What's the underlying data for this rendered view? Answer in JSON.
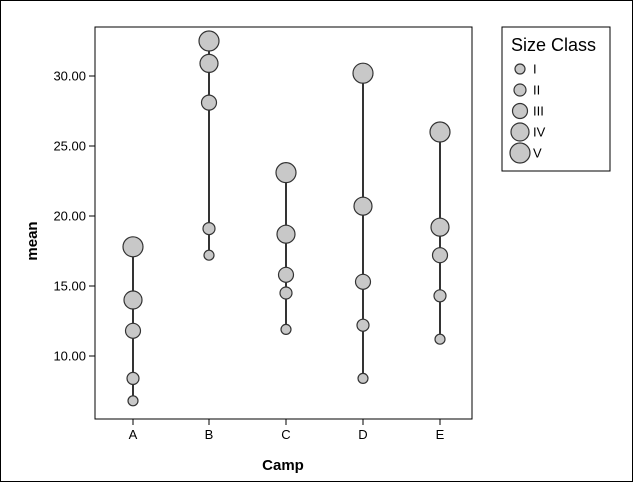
{
  "chart_data": {
    "type": "scatter",
    "subtype": "high-low dot plot with sized markers",
    "xlabel": "Camp",
    "ylabel": "mean",
    "categories": [
      "A",
      "B",
      "C",
      "D",
      "E"
    ],
    "ylim": [
      5.5,
      33.5
    ],
    "yticks": [
      "10.00",
      "15.00",
      "20.00",
      "25.00",
      "30.00"
    ],
    "ytick_values": [
      10,
      15,
      20,
      25,
      30
    ],
    "grid": false,
    "legend": {
      "title": "Size Class",
      "placement": "top-right outside plot",
      "entries": [
        "I",
        "II",
        "III",
        "IV",
        "V"
      ]
    },
    "marker_color": "#c8c8c8",
    "marker_edge": "#333333",
    "line_color": "#000000",
    "series": [
      {
        "name": "I",
        "values": [
          6.8,
          17.2,
          11.9,
          8.4,
          11.2
        ]
      },
      {
        "name": "II",
        "values": [
          8.4,
          19.1,
          14.5,
          12.2,
          14.3
        ]
      },
      {
        "name": "III",
        "values": [
          11.8,
          28.1,
          15.8,
          15.3,
          17.2
        ]
      },
      {
        "name": "IV",
        "values": [
          14.0,
          30.9,
          18.7,
          20.7,
          19.2
        ]
      },
      {
        "name": "V",
        "values": [
          17.8,
          32.5,
          23.1,
          30.2,
          26.0
        ]
      }
    ]
  }
}
